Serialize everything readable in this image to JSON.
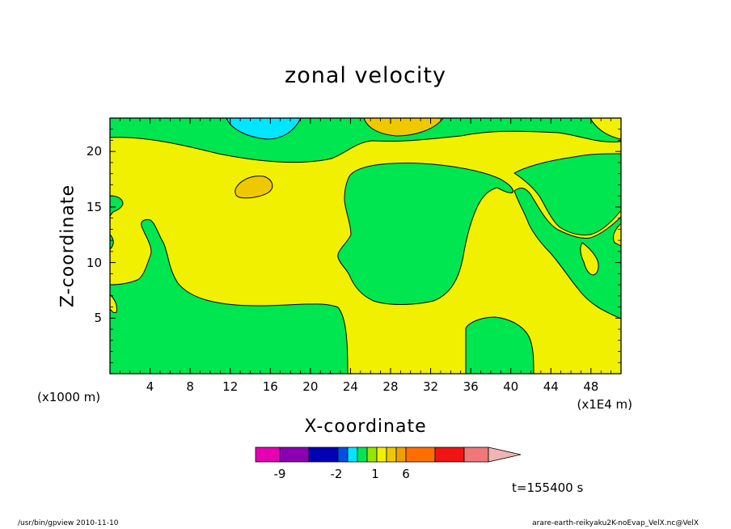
{
  "chart_data": {
    "type": "contour",
    "title": "zonal velocity",
    "xlabel": "X-coordinate",
    "ylabel": "Z-coordinate",
    "x_unit_label": "(x1000 m)",
    "x_multiplier_label": "(x1E4 m)",
    "x_ticks": [
      "4",
      "8",
      "12",
      "16",
      "20",
      "24",
      "28",
      "32",
      "36",
      "40",
      "44",
      "48"
    ],
    "y_ticks": [
      "5",
      "10",
      "15",
      "20"
    ],
    "xlim": [
      0,
      51
    ],
    "ylim": [
      0,
      23
    ],
    "grid": false,
    "colorbar": {
      "colors": [
        "#e600b4",
        "#8c00b4",
        "#0000b4",
        "#0050e6",
        "#00e6ff",
        "#00e650",
        "#96e600",
        "#f0f000",
        "#f0c800",
        "#f0a000",
        "#ff6e00",
        "#f01414",
        "#f07878",
        "#f0b4b4"
      ],
      "labels": [
        "-9",
        "-2",
        "1",
        "6"
      ]
    },
    "regions": [
      {
        "level": "green",
        "color": "#00e650"
      },
      {
        "level": "yellow",
        "color": "#f0f000"
      },
      {
        "level": "light-orange",
        "color": "#f0c800"
      },
      {
        "level": "cyan",
        "color": "#00e6ff"
      }
    ],
    "time_label": "t=155400 s"
  },
  "footer": {
    "left": "/usr/bin/gpview   2010-11-10",
    "right": "arare-earth-reikyaku2K-noEvap_VelX.nc@VelX"
  }
}
